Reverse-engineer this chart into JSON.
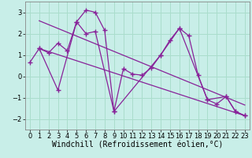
{
  "xlabel": "Windchill (Refroidissement éolien,°C)",
  "bg_color": "#c8eee8",
  "line_color": "#882299",
  "grid_color": "#aaddcc",
  "xlim": [
    -0.5,
    23.5
  ],
  "ylim": [
    -2.5,
    3.5
  ],
  "yticks": [
    -2,
    -1,
    0,
    1,
    2,
    3
  ],
  "xticks": [
    0,
    1,
    2,
    3,
    4,
    5,
    6,
    7,
    8,
    9,
    10,
    11,
    12,
    13,
    14,
    15,
    16,
    17,
    18,
    19,
    20,
    21,
    22,
    23
  ],
  "series1_x": [
    0,
    1,
    2,
    3,
    4,
    5,
    6,
    7,
    9,
    10,
    11,
    12,
    13,
    14,
    15,
    16,
    17,
    18,
    19,
    20,
    21,
    22,
    23
  ],
  "series1_y": [
    0.65,
    1.3,
    1.1,
    1.55,
    1.2,
    2.55,
    2.0,
    2.1,
    -1.65,
    0.35,
    0.1,
    0.05,
    0.4,
    1.0,
    1.7,
    2.25,
    1.9,
    0.05,
    -1.1,
    -1.3,
    -0.95,
    -1.65,
    -1.85
  ],
  "series2_x": [
    1,
    3,
    5,
    6,
    7,
    8,
    9,
    14,
    16,
    19,
    21,
    22,
    23
  ],
  "series2_y": [
    1.3,
    -0.65,
    2.55,
    3.1,
    3.0,
    2.15,
    -1.65,
    1.0,
    2.25,
    -1.1,
    -0.95,
    -1.65,
    -1.85
  ],
  "trend1_x": [
    1,
    23
  ],
  "trend1_y": [
    2.6,
    -1.35
  ],
  "trend2_x": [
    1,
    23
  ],
  "trend2_y": [
    1.3,
    -1.85
  ],
  "xlabel_fontsize": 7,
  "tick_fontsize": 6
}
